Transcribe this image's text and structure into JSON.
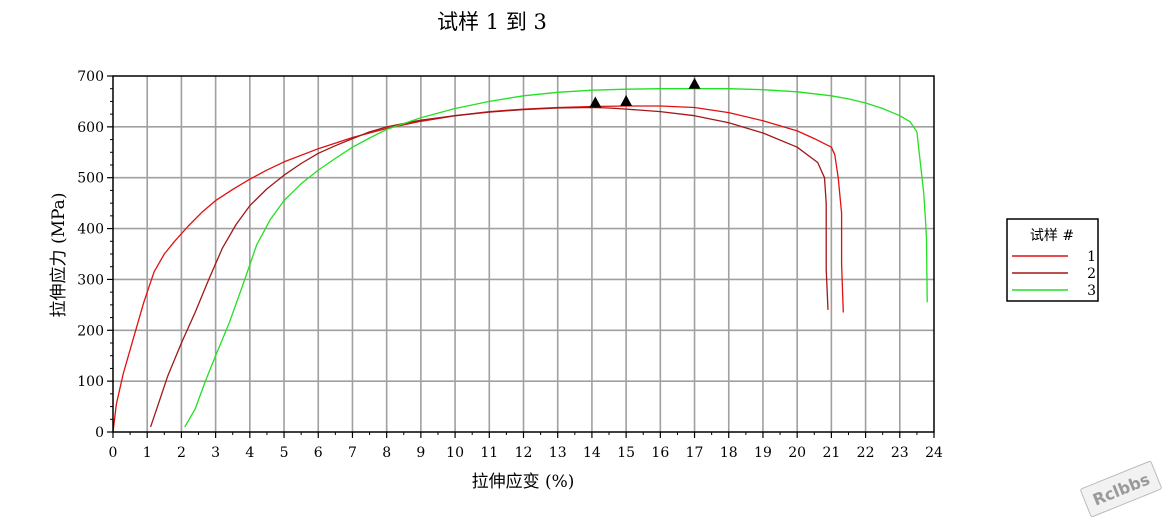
{
  "chart_data": {
    "type": "line",
    "title": "试样 1 到 3",
    "xlabel": "拉伸应变 (%)",
    "ylabel": "拉伸应力 (MPa)",
    "xlim": [
      0,
      24
    ],
    "ylim": [
      0,
      700
    ],
    "x_ticks": [
      "0",
      "1",
      "2",
      "3",
      "4",
      "5",
      "6",
      "7",
      "8",
      "9",
      "10",
      "11",
      "12",
      "13",
      "14",
      "15",
      "16",
      "17",
      "18",
      "19",
      "20",
      "21",
      "22",
      "23",
      "24"
    ],
    "y_ticks": [
      "0",
      "100",
      "200",
      "300",
      "400",
      "500",
      "600",
      "700"
    ],
    "grid": true,
    "legend": {
      "title": "试样 #",
      "placement": "right",
      "entries": [
        "1",
        "2",
        "3"
      ]
    },
    "series": [
      {
        "name": "1",
        "color": "#e01010",
        "points": [
          [
            0,
            0
          ],
          [
            0.1,
            55
          ],
          [
            0.3,
            115
          ],
          [
            0.6,
            185
          ],
          [
            0.9,
            255
          ],
          [
            1.2,
            315
          ],
          [
            1.5,
            350
          ],
          [
            1.8,
            375
          ],
          [
            2.2,
            405
          ],
          [
            2.6,
            432
          ],
          [
            3,
            455
          ],
          [
            3.5,
            477
          ],
          [
            4,
            497
          ],
          [
            4.5,
            515
          ],
          [
            5,
            531
          ],
          [
            6,
            557
          ],
          [
            7,
            579
          ],
          [
            8,
            597
          ],
          [
            9,
            611
          ],
          [
            10,
            622
          ],
          [
            11,
            630
          ],
          [
            12,
            635
          ],
          [
            13,
            638
          ],
          [
            14,
            640
          ],
          [
            15,
            641
          ],
          [
            16,
            641
          ],
          [
            17,
            638
          ],
          [
            18,
            628
          ],
          [
            19,
            612
          ],
          [
            20,
            592
          ],
          [
            20.5,
            577
          ],
          [
            21,
            560
          ],
          [
            21.1,
            545
          ],
          [
            21.2,
            500
          ],
          [
            21.3,
            430
          ],
          [
            21.3,
            330
          ],
          [
            21.35,
            235
          ]
        ],
        "peak": [
          15,
          641
        ]
      },
      {
        "name": "2",
        "color": "#a01818",
        "points": [
          [
            1.1,
            10
          ],
          [
            1.3,
            50
          ],
          [
            1.6,
            110
          ],
          [
            2,
            175
          ],
          [
            2.4,
            235
          ],
          [
            2.8,
            300
          ],
          [
            3.2,
            362
          ],
          [
            3.6,
            408
          ],
          [
            4,
            445
          ],
          [
            4.5,
            478
          ],
          [
            5,
            505
          ],
          [
            5.5,
            528
          ],
          [
            6,
            548
          ],
          [
            6.5,
            563
          ],
          [
            7,
            577
          ],
          [
            7.5,
            590
          ],
          [
            8,
            600
          ],
          [
            9,
            613
          ],
          [
            10,
            622
          ],
          [
            11,
            629
          ],
          [
            12,
            634
          ],
          [
            13,
            637
          ],
          [
            14,
            638
          ],
          [
            14.5,
            637
          ],
          [
            15,
            635
          ],
          [
            16,
            630
          ],
          [
            17,
            622
          ],
          [
            18,
            608
          ],
          [
            19,
            588
          ],
          [
            20,
            560
          ],
          [
            20.6,
            530
          ],
          [
            20.8,
            500
          ],
          [
            20.85,
            450
          ],
          [
            20.85,
            320
          ],
          [
            20.9,
            240
          ]
        ],
        "peak": [
          14.1,
          638
        ]
      },
      {
        "name": "3",
        "color": "#22e022",
        "points": [
          [
            2.1,
            10
          ],
          [
            2.4,
            45
          ],
          [
            2.7,
            100
          ],
          [
            3,
            150
          ],
          [
            3.4,
            215
          ],
          [
            3.8,
            290
          ],
          [
            4.2,
            368
          ],
          [
            4.6,
            418
          ],
          [
            5,
            455
          ],
          [
            5.5,
            488
          ],
          [
            6,
            515
          ],
          [
            6.5,
            538
          ],
          [
            7,
            560
          ],
          [
            7.5,
            578
          ],
          [
            8,
            595
          ],
          [
            9,
            618
          ],
          [
            10,
            636
          ],
          [
            11,
            650
          ],
          [
            12,
            661
          ],
          [
            13,
            668
          ],
          [
            14,
            672
          ],
          [
            15,
            674
          ],
          [
            16,
            675
          ],
          [
            17,
            675
          ],
          [
            18,
            675
          ],
          [
            19,
            673
          ],
          [
            20,
            669
          ],
          [
            21,
            661
          ],
          [
            21.5,
            655
          ],
          [
            22,
            647
          ],
          [
            22.5,
            636
          ],
          [
            23,
            622
          ],
          [
            23.3,
            610
          ],
          [
            23.5,
            590
          ],
          [
            23.6,
            530
          ],
          [
            23.7,
            470
          ],
          [
            23.75,
            420
          ],
          [
            23.78,
            380
          ],
          [
            23.8,
            255
          ]
        ],
        "peak": [
          17,
          675
        ]
      }
    ]
  },
  "watermark": "Rclbbs"
}
